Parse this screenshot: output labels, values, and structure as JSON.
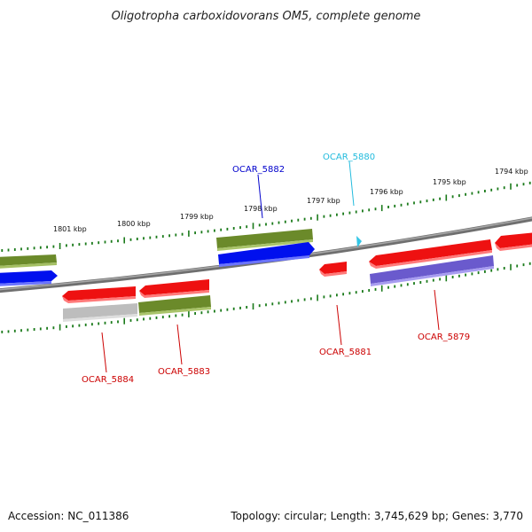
{
  "title": "Oligotropha carboxidovorans OM5, complete genome",
  "footer": {
    "accession": "Accession: NC_011386",
    "topology": "Topology: circular; Length: 3,745,629 bp; Genes: 3,770"
  },
  "scale_labels": [
    "1801 kbp",
    "1800 kbp",
    "1799 kbp",
    "1798 kbp",
    "1797 kbp",
    "1796 kbp",
    "1795 kbp",
    "1794 kbp"
  ],
  "gene_labels": [
    {
      "id": "OCAR_5882",
      "color": "#0000cc"
    },
    {
      "id": "OCAR_5880",
      "color": "#22bbdd"
    },
    {
      "id": "OCAR_5884",
      "color": "#cc0000"
    },
    {
      "id": "OCAR_5883",
      "color": "#cc0000"
    },
    {
      "id": "OCAR_5881",
      "color": "#cc0000"
    },
    {
      "id": "OCAR_5879",
      "color": "#cc0000"
    }
  ],
  "colors": {
    "backbone": "#7a7a7a",
    "tick": "#1a7a1a",
    "red": "#ee1111",
    "blue": "#0010ee",
    "olive": "#6b8a2a",
    "gray": "#bdbdbd",
    "purple": "#6a5acd",
    "cyan": "#33c6e6"
  }
}
